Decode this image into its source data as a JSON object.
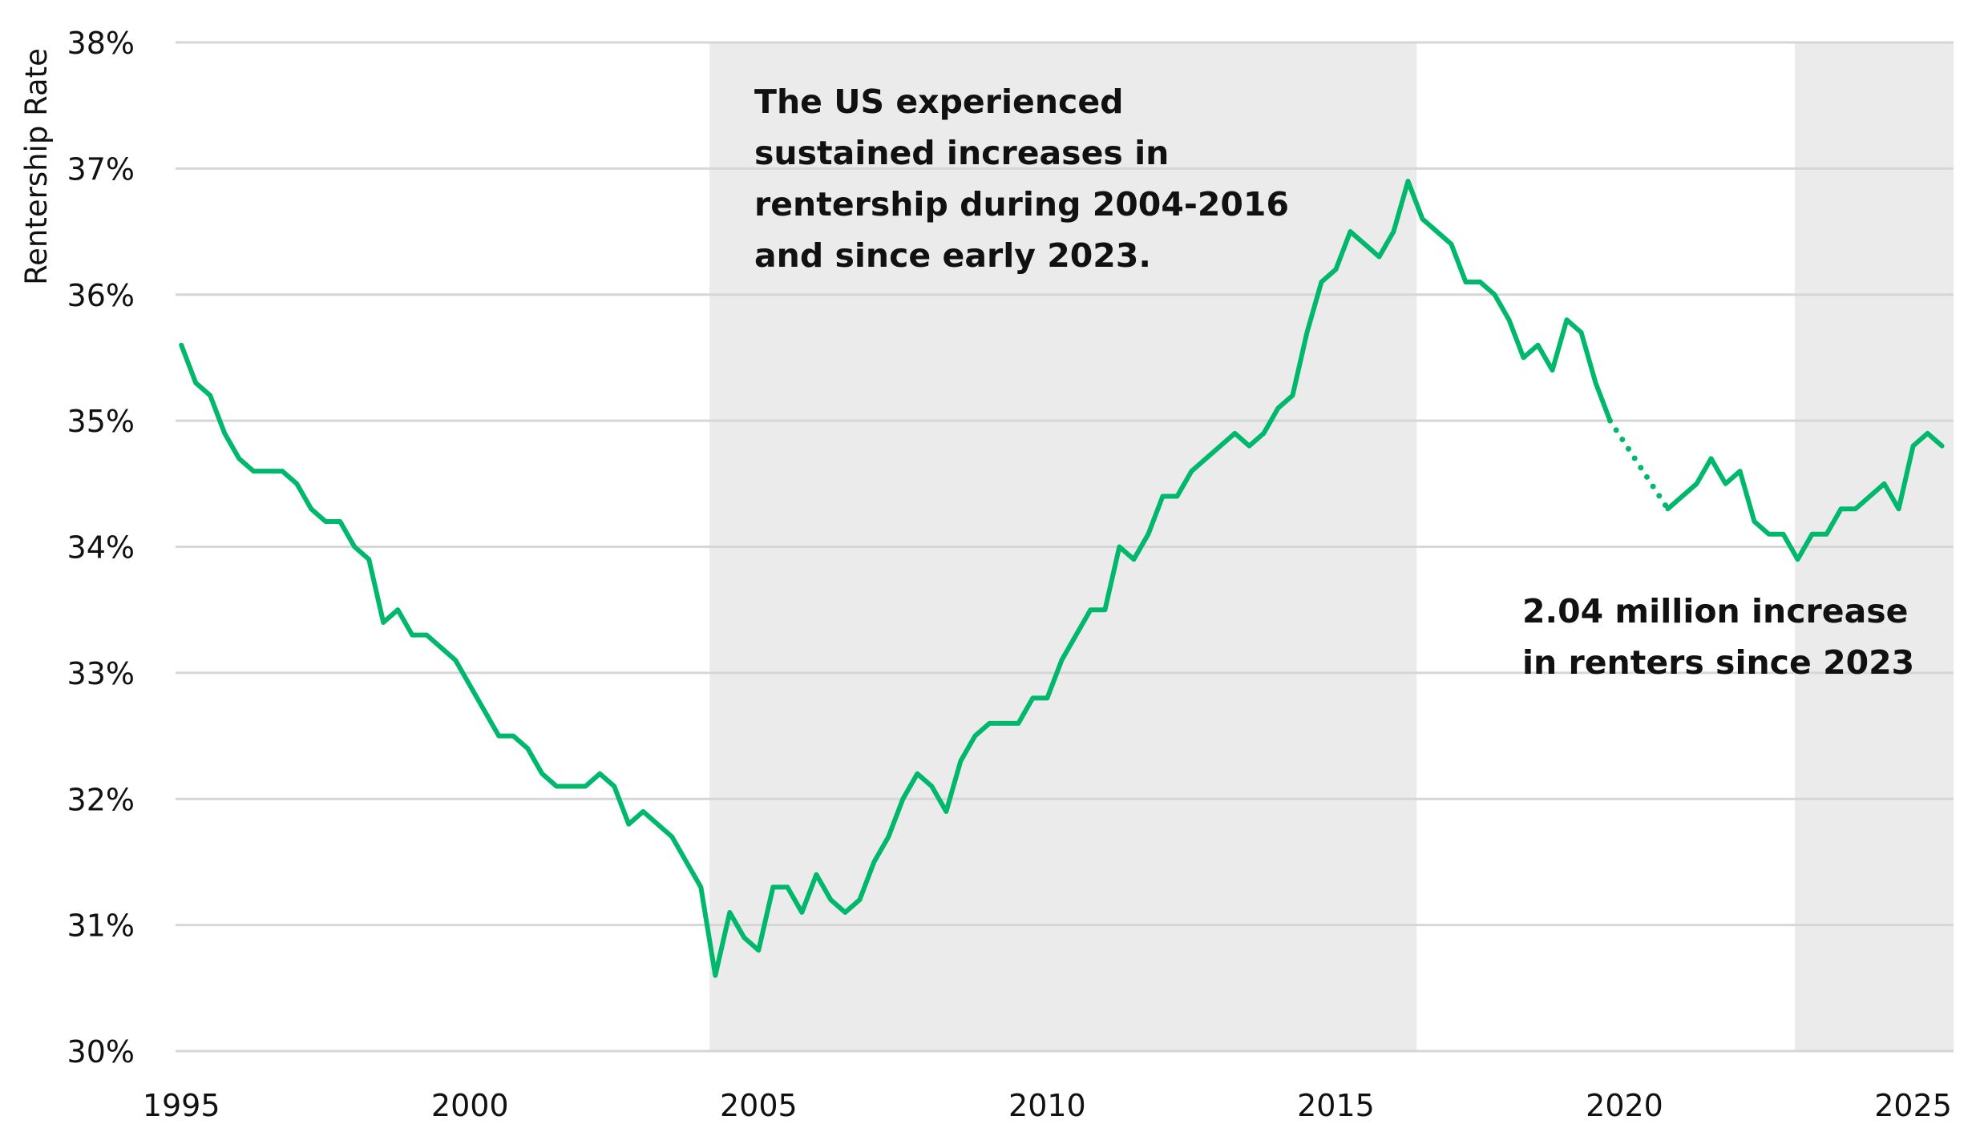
{
  "chart_data": {
    "type": "line",
    "title": "",
    "xlabel": "",
    "ylabel": "Rentership Rate",
    "x_start": 1995.0,
    "x_step": 0.25,
    "xlim": [
      1994.9,
      2025.7
    ],
    "ylim": [
      30,
      38
    ],
    "x_ticks": [
      "1995",
      "2000",
      "2005",
      "2010",
      "2015",
      "2020",
      "2025"
    ],
    "x_tick_values": [
      1995,
      2000,
      2005,
      2010,
      2015,
      2020,
      2025
    ],
    "y_ticks": [
      "30%",
      "31%",
      "32%",
      "33%",
      "34%",
      "35%",
      "36%",
      "37%",
      "38%"
    ],
    "y_tick_values": [
      30,
      31,
      32,
      33,
      34,
      35,
      36,
      37,
      38
    ],
    "grid": "horizontal",
    "line_color": "#00b86b",
    "shade_color": "#ebebeb",
    "shaded_periods": [
      [
        2004.15,
        2016.4
      ],
      [
        2022.95,
        2025.7
      ]
    ],
    "series": [
      {
        "name": "Rentership Rate",
        "values": [
          35.6,
          35.3,
          35.2,
          34.9,
          34.7,
          34.6,
          34.6,
          34.6,
          34.5,
          34.3,
          34.2,
          34.2,
          34.0,
          33.9,
          33.4,
          33.5,
          33.3,
          33.3,
          33.2,
          33.1,
          32.9,
          32.7,
          32.5,
          32.5,
          32.4,
          32.2,
          32.1,
          32.1,
          32.1,
          32.2,
          32.1,
          31.8,
          31.9,
          31.8,
          31.7,
          31.5,
          31.3,
          30.6,
          31.1,
          30.9,
          30.8,
          31.3,
          31.3,
          31.1,
          31.4,
          31.2,
          31.1,
          31.2,
          31.5,
          31.7,
          32.0,
          32.2,
          32.1,
          31.9,
          32.3,
          32.5,
          32.6,
          32.6,
          32.6,
          32.8,
          32.8,
          33.1,
          33.3,
          33.5,
          33.5,
          34.0,
          33.9,
          34.1,
          34.4,
          34.4,
          34.6,
          34.7,
          34.8,
          34.9,
          34.8,
          34.9,
          35.1,
          35.2,
          35.7,
          36.1,
          36.2,
          36.5,
          36.4,
          36.3,
          36.5,
          36.9,
          36.6,
          36.5,
          36.4,
          36.1,
          36.1,
          36.0,
          35.8,
          35.5,
          35.6,
          35.4,
          35.8,
          35.7,
          35.3,
          35.0,
          null,
          null,
          null,
          34.3,
          34.4,
          34.5,
          34.7,
          34.5,
          34.6,
          34.2,
          34.1,
          34.1,
          33.9,
          34.1,
          34.1,
          34.3,
          34.3,
          34.4,
          34.5,
          34.3,
          34.8,
          34.9,
          34.8
        ]
      }
    ],
    "gap_style": "dotted",
    "annotations": [
      {
        "lines": [
          "The US experienced",
          "sustained increases in",
          "rentership during 2004-2016",
          "and since early 2023."
        ]
      },
      {
        "lines": [
          "2.04 million increase",
          "in renters since 2023"
        ]
      }
    ]
  }
}
